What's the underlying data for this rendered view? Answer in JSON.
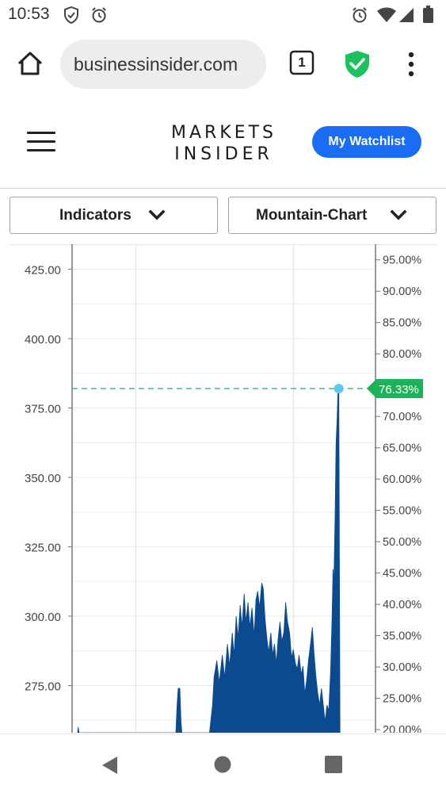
{
  "status_bar": {
    "time": "10:53",
    "icons": [
      "shield-check-icon",
      "alarm-icon",
      "alarm-icon",
      "wifi-icon",
      "signal-icon",
      "battery-icon"
    ]
  },
  "browser": {
    "url": "businessinsider.com",
    "tab_count": "1",
    "icons": [
      "home-icon",
      "tabs-icon",
      "shield-check-icon",
      "more-vert-icon"
    ],
    "shield_color": "#19c25a"
  },
  "header": {
    "logo_line1": "MARKETS",
    "logo_line2": "INSIDER",
    "watchlist_label": "My Watchlist",
    "accent_color": "#1a6cf5"
  },
  "controls": {
    "indicators_label": "Indicators",
    "chart_type_label": "Mountain-Chart"
  },
  "chart_data": {
    "type": "area",
    "title": "",
    "left_axis": {
      "ticks": [
        "425.00",
        "400.00",
        "375.00",
        "350.00",
        "325.00",
        "300.00",
        "275.00"
      ],
      "ylim": [
        258,
        434
      ]
    },
    "right_axis": {
      "ticks": [
        "95.00%",
        "90.00%",
        "85.00%",
        "80.00%",
        "75.00%",
        "70.00%",
        "65.00%",
        "60.00%",
        "55.00%",
        "50.00%",
        "45.00%",
        "40.00%",
        "35.00%",
        "30.00%",
        "25.00%",
        "20.00%"
      ],
      "ylim": [
        19.5,
        97.5
      ]
    },
    "current_value_label": "76.33%",
    "current_value": 382,
    "x_range": [
      0,
      100
    ],
    "grid": true,
    "series": [
      {
        "color": "#0a4a8f",
        "points": [
          [
            1.8,
            258
          ],
          [
            2.0,
            260
          ],
          [
            2.3,
            258
          ],
          [
            34.2,
            258
          ],
          [
            34.6,
            268
          ],
          [
            35.0,
            274
          ],
          [
            35.5,
            274
          ],
          [
            35.9,
            262
          ],
          [
            36.2,
            258
          ],
          [
            45.3,
            258
          ],
          [
            46.3,
            268
          ],
          [
            46.8,
            278
          ],
          [
            47.7,
            284
          ],
          [
            48.5,
            276
          ],
          [
            49.5,
            286
          ],
          [
            50.3,
            278
          ],
          [
            51.2,
            290
          ],
          [
            51.9,
            282
          ],
          [
            52.8,
            294
          ],
          [
            53.4,
            286
          ],
          [
            54.1,
            300
          ],
          [
            54.7,
            292
          ],
          [
            55.4,
            304
          ],
          [
            56.0,
            296
          ],
          [
            56.7,
            308
          ],
          [
            57.3,
            298
          ],
          [
            58.0,
            305
          ],
          [
            58.6,
            296
          ],
          [
            59.3,
            303
          ],
          [
            60.0,
            293
          ],
          [
            60.6,
            306
          ],
          [
            61.2,
            309
          ],
          [
            61.8,
            303
          ],
          [
            62.5,
            312
          ],
          [
            63.0,
            310
          ],
          [
            63.6,
            299
          ],
          [
            64.2,
            292
          ],
          [
            64.8,
            287
          ],
          [
            65.5,
            294
          ],
          [
            66.1,
            286
          ],
          [
            66.7,
            290
          ],
          [
            67.3,
            283
          ],
          [
            67.9,
            292
          ],
          [
            68.5,
            298
          ],
          [
            69.1,
            291
          ],
          [
            69.8,
            294
          ],
          [
            70.4,
            305
          ],
          [
            71.0,
            298
          ],
          [
            71.7,
            294
          ],
          [
            72.3,
            285
          ],
          [
            72.9,
            288
          ],
          [
            73.6,
            283
          ],
          [
            74.2,
            281
          ],
          [
            74.8,
            286
          ],
          [
            75.5,
            279
          ],
          [
            76.1,
            282
          ],
          [
            76.7,
            272
          ],
          [
            77.3,
            277
          ],
          [
            77.9,
            284
          ],
          [
            78.6,
            290
          ],
          [
            79.2,
            296
          ],
          [
            79.8,
            286
          ],
          [
            80.4,
            278
          ],
          [
            81.0,
            272
          ],
          [
            81.6,
            268
          ],
          [
            82.2,
            274
          ],
          [
            82.8,
            268
          ],
          [
            83.4,
            262
          ],
          [
            84.0,
            268
          ],
          [
            84.6,
            266
          ],
          [
            85.2,
            280
          ],
          [
            85.7,
            300
          ],
          [
            86.0,
            317
          ],
          [
            86.3,
            312
          ],
          [
            86.7,
            338
          ],
          [
            87.0,
            362
          ],
          [
            87.3,
            370
          ],
          [
            87.6,
            380
          ],
          [
            87.9,
            382
          ],
          [
            88.3,
            258
          ]
        ]
      }
    ]
  }
}
